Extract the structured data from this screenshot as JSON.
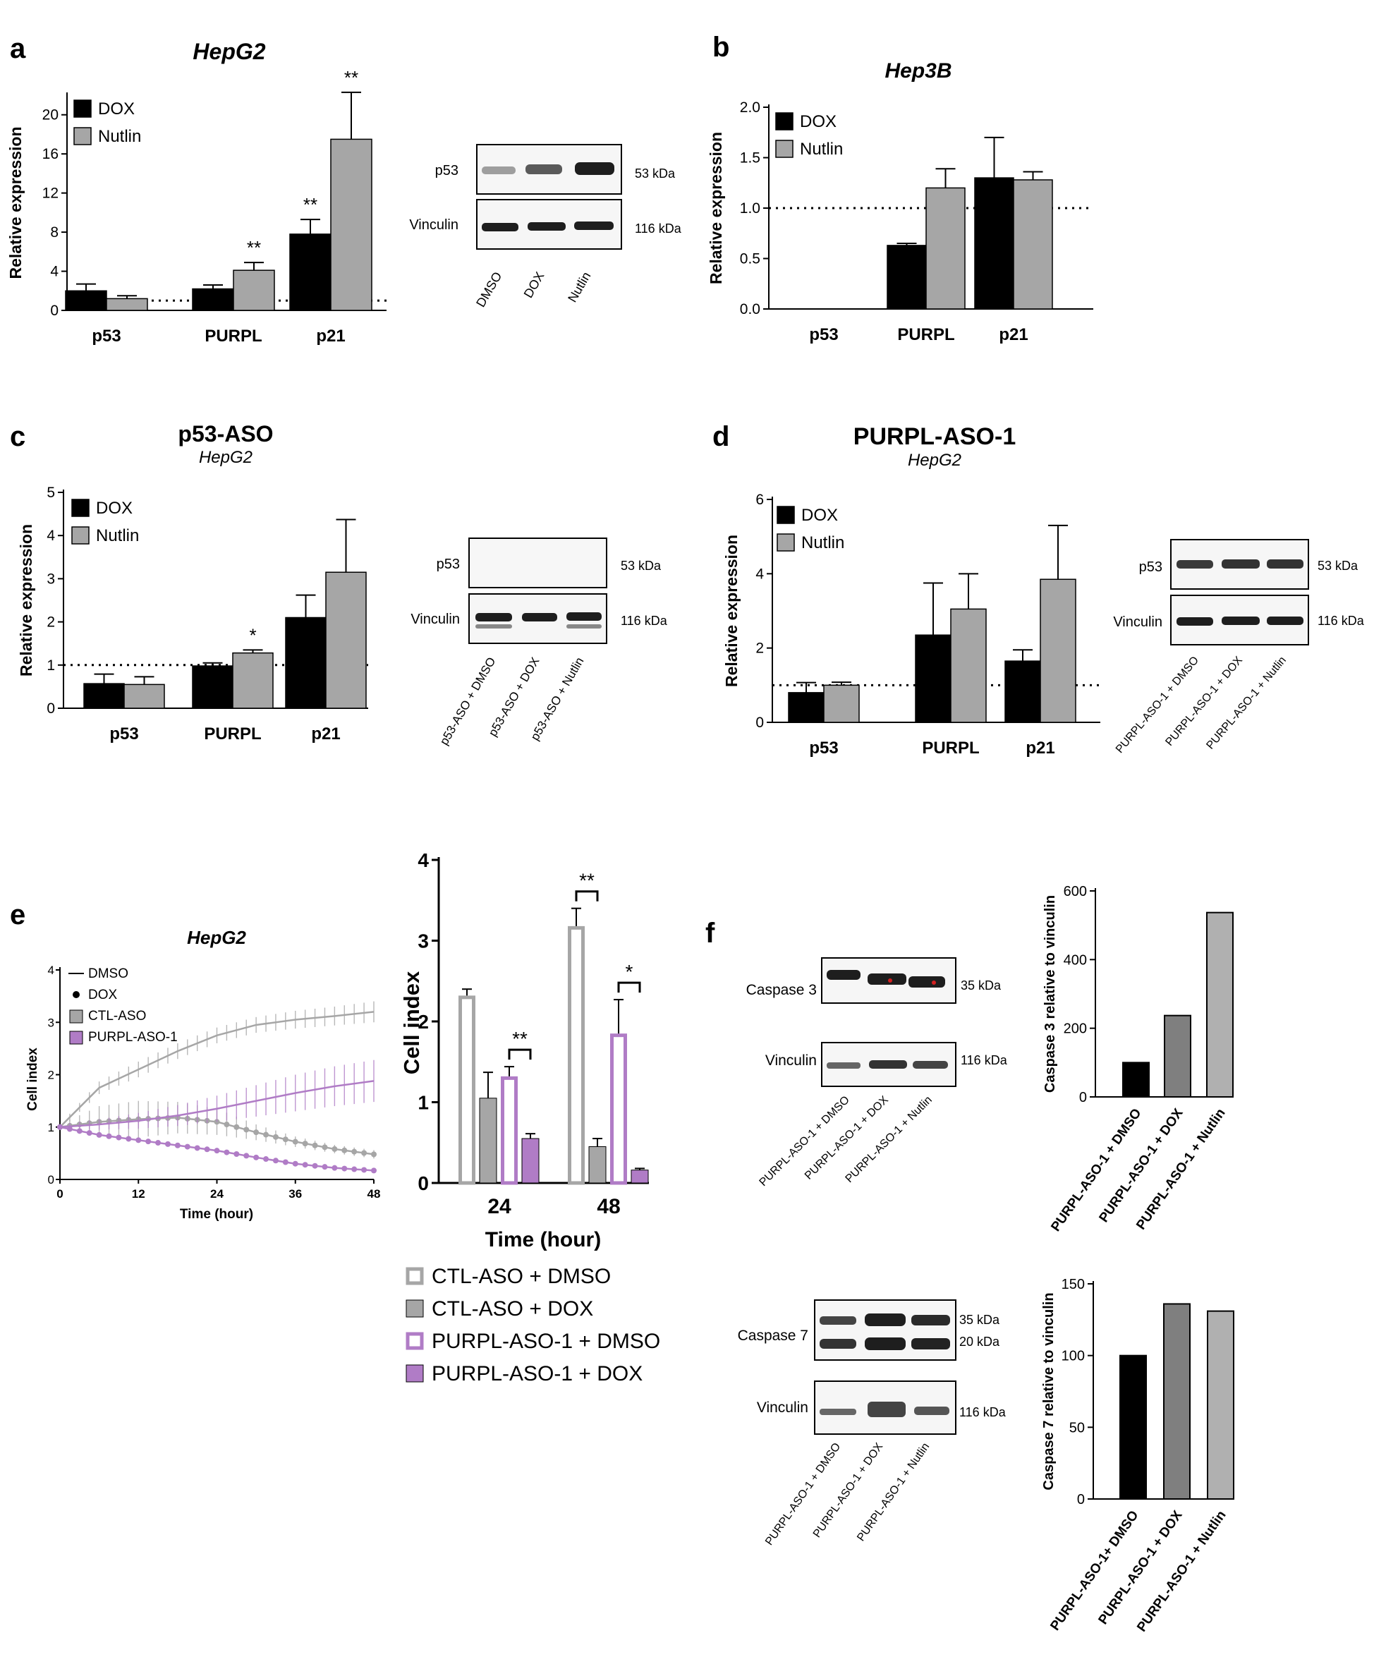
{
  "colors": {
    "black": "#000000",
    "gray": "#a6a6a6",
    "dark_gray": "#7f7f7f",
    "light_gray": "#b0b0b0",
    "purple": "#b07cc6",
    "light_purple": "#c49ad4",
    "blot_band": "#1e1e1e",
    "caspase_mark": "#d32020"
  },
  "chart_data": [
    {
      "panel": "a",
      "type": "bar",
      "title": "HepG2",
      "subtitle": "",
      "ylabel": "Relative expression",
      "ylim": [
        0,
        22
      ],
      "yticks": [
        0,
        4,
        8,
        12,
        16,
        20
      ],
      "reference_line": 1,
      "categories": [
        "p53",
        "PURPL",
        "p21"
      ],
      "series": [
        {
          "name": "DOX",
          "color": "#000000",
          "values": [
            2.0,
            2.2,
            7.8
          ],
          "errors": [
            0.7,
            0.4,
            1.5
          ],
          "sig": [
            "",
            "",
            "**"
          ]
        },
        {
          "name": "Nutlin",
          "color": "#a6a6a6",
          "values": [
            1.2,
            4.1,
            17.5
          ],
          "errors": [
            0.3,
            0.8,
            4.8
          ],
          "sig": [
            "",
            "**",
            "**"
          ]
        }
      ]
    },
    {
      "panel": "b",
      "type": "bar",
      "title": "Hep3B",
      "subtitle": "",
      "ylabel": "Relative expression",
      "ylim": [
        0,
        2.0
      ],
      "yticks": [
        0.0,
        0.5,
        1.0,
        1.5,
        2.0
      ],
      "decimals": 1,
      "reference_line": 1.0,
      "categories": [
        "p53",
        "PURPL",
        "p21"
      ],
      "series": [
        {
          "name": "DOX",
          "color": "#000000",
          "values": [
            0,
            0.63,
            1.3
          ],
          "errors": [
            0,
            0.02,
            0.4
          ],
          "sig": [
            "",
            "",
            ""
          ]
        },
        {
          "name": "Nutlin",
          "color": "#a6a6a6",
          "values": [
            0,
            1.2,
            1.28
          ],
          "errors": [
            0,
            0.19,
            0.08
          ],
          "sig": [
            "",
            "",
            ""
          ]
        }
      ]
    },
    {
      "panel": "c",
      "type": "bar",
      "title": "p53-ASO",
      "subtitle": "HepG2",
      "ylabel": "Relative expression",
      "ylim": [
        0,
        5
      ],
      "yticks": [
        0,
        1,
        2,
        3,
        4,
        5
      ],
      "reference_line": 1,
      "categories": [
        "p53",
        "PURPL",
        "p21"
      ],
      "series": [
        {
          "name": "DOX",
          "color": "#000000",
          "values": [
            0.57,
            0.98,
            2.1
          ],
          "errors": [
            0.22,
            0.07,
            0.52
          ],
          "sig": [
            "",
            "",
            ""
          ]
        },
        {
          "name": "Nutlin",
          "color": "#a6a6a6",
          "values": [
            0.55,
            1.28,
            3.15
          ],
          "errors": [
            0.18,
            0.07,
            1.22
          ],
          "sig": [
            "",
            "*",
            ""
          ]
        }
      ]
    },
    {
      "panel": "d",
      "type": "bar",
      "title": "PURPL-ASO-1",
      "subtitle": "HepG2",
      "ylabel": "Relative expression",
      "ylim": [
        0,
        6
      ],
      "yticks": [
        0,
        2,
        4,
        6
      ],
      "reference_line": 1,
      "categories": [
        "p53",
        "PURPL",
        "p21"
      ],
      "series": [
        {
          "name": "DOX",
          "color": "#000000",
          "values": [
            0.8,
            2.35,
            1.65
          ],
          "errors": [
            0.27,
            1.4,
            0.3
          ],
          "sig": [
            "",
            "",
            ""
          ]
        },
        {
          "name": "Nutlin",
          "color": "#a6a6a6",
          "values": [
            1.0,
            3.05,
            3.85
          ],
          "errors": [
            0.08,
            0.95,
            1.45
          ],
          "sig": [
            "",
            "",
            ""
          ]
        }
      ]
    },
    {
      "panel": "e-line",
      "type": "line",
      "title": "HepG2",
      "xlabel": "Time (hour)",
      "ylabel": "Cell index",
      "xlim": [
        0,
        48
      ],
      "ylim": [
        0,
        4
      ],
      "xticks": [
        0,
        12,
        24,
        36,
        48
      ],
      "yticks": [
        0,
        1,
        2,
        3,
        4
      ],
      "legend": [
        "DMSO",
        "DOX",
        "CTL-ASO",
        "PURPL-ASO-1"
      ],
      "series": [
        {
          "name": "CTL-ASO + DMSO",
          "color": "#a6a6a6",
          "x": [
            0,
            6,
            12,
            18,
            24,
            30,
            36,
            42,
            48
          ],
          "y": [
            1.0,
            1.75,
            2.1,
            2.45,
            2.75,
            2.95,
            3.05,
            3.12,
            3.2
          ],
          "err": [
            0.05,
            0.12,
            0.15,
            0.15,
            0.15,
            0.15,
            0.17,
            0.18,
            0.2
          ]
        },
        {
          "name": "CTL-ASO + DOX",
          "color": "#a6a6a6",
          "x": [
            0,
            6,
            12,
            18,
            24,
            30,
            36,
            42,
            48
          ],
          "y": [
            1.0,
            1.1,
            1.15,
            1.18,
            1.1,
            0.9,
            0.72,
            0.58,
            0.48
          ],
          "err": [
            0.05,
            0.3,
            0.35,
            0.3,
            0.25,
            0.15,
            0.1,
            0.08,
            0.08
          ]
        },
        {
          "name": "PURPL-ASO-1 + DMSO",
          "color": "#b07cc6",
          "x": [
            0,
            6,
            12,
            18,
            24,
            30,
            36,
            42,
            48
          ],
          "y": [
            1.0,
            1.05,
            1.12,
            1.22,
            1.35,
            1.5,
            1.65,
            1.78,
            1.88
          ],
          "err": [
            0.05,
            0.1,
            0.15,
            0.2,
            0.25,
            0.3,
            0.35,
            0.38,
            0.4
          ]
        },
        {
          "name": "PURPL-ASO-1 + DOX",
          "color": "#b07cc6",
          "x": [
            0,
            6,
            12,
            18,
            24,
            30,
            36,
            42,
            48
          ],
          "y": [
            1.0,
            0.85,
            0.75,
            0.65,
            0.55,
            0.42,
            0.3,
            0.22,
            0.17
          ],
          "err": [
            0.02,
            0.02,
            0.02,
            0.02,
            0.02,
            0.02,
            0.02,
            0.02,
            0.02
          ]
        }
      ]
    },
    {
      "panel": "e-bar",
      "type": "bar",
      "xlabel": "Time (hour)",
      "ylabel": "Cell index",
      "ylim": [
        0,
        4
      ],
      "yticks": [
        0,
        1,
        2,
        3,
        4
      ],
      "categories": [
        "24",
        "48"
      ],
      "series": [
        {
          "name": "CTL-ASO + DMSO",
          "color": "#a6a6a6",
          "hollow": true,
          "values": [
            2.32,
            3.18
          ],
          "errors": [
            0.08,
            0.22
          ]
        },
        {
          "name": "CTL-ASO + DOX",
          "color": "#a6a6a6",
          "hollow": false,
          "values": [
            1.05,
            0.45
          ],
          "errors": [
            0.32,
            0.1
          ]
        },
        {
          "name": "PURPL-ASO-1 + DMSO",
          "color": "#b07cc6",
          "hollow": true,
          "values": [
            1.32,
            1.85
          ],
          "errors": [
            0.12,
            0.42
          ]
        },
        {
          "name": "PURPL-ASO-1 + DOX",
          "color": "#b07cc6",
          "hollow": false,
          "values": [
            0.55,
            0.16
          ],
          "errors": [
            0.06,
            0.02
          ]
        }
      ],
      "significance": [
        {
          "time": "24",
          "label": "**",
          "from": 2,
          "to": 3
        },
        {
          "time": "48",
          "label": "**",
          "from": 0,
          "to": 1
        },
        {
          "time": "48",
          "label": "*",
          "from": 2,
          "to": 3
        }
      ]
    },
    {
      "panel": "f-top",
      "type": "bar",
      "ylabel": "Caspase 3 relative to vinculin",
      "ylim": [
        0,
        600
      ],
      "yticks": [
        0,
        200,
        400,
        600
      ],
      "categories": [
        "PURPL-ASO-1 + DMSO",
        "PURPL-ASO-1 + DOX",
        "PURPL-ASO-1 + Nutlin"
      ],
      "values": [
        100,
        237,
        537
      ],
      "colors": [
        "#000000",
        "#7f7f7f",
        "#b0b0b0"
      ]
    },
    {
      "panel": "f-bottom",
      "type": "bar",
      "ylabel": "Caspase 7 relative to vinculin",
      "ylim": [
        0,
        150
      ],
      "yticks": [
        0,
        50,
        100,
        150
      ],
      "categories": [
        "PURPL-ASO-1+ DMSO",
        "PURPL-ASO-1 + DOX",
        "PURPL-ASO-1 + Nutlin"
      ],
      "values": [
        100,
        136,
        131
      ],
      "colors": [
        "#000000",
        "#7f7f7f",
        "#b0b0b0"
      ]
    }
  ],
  "labels": {
    "panel_a": "a",
    "panel_b": "b",
    "panel_c": "c",
    "panel_d": "d",
    "panel_e": "e",
    "panel_f": "f",
    "p53": "p53",
    "vinculin": "Vinculin",
    "caspase3": "Caspase 3",
    "caspase7": "Caspase 7",
    "kda53": "53 kDa",
    "kda116": "116 kDa",
    "kda35": "35 kDa",
    "kda20": "20 kDa",
    "lane_dmso": "DMSO",
    "lane_dox": "DOX",
    "lane_nutlin": "Nutlin",
    "lane_p53aso_dmso": "p53-ASO + DMSO",
    "lane_p53aso_dox": "p53-ASO + DOX",
    "lane_p53aso_nutlin": "p53-ASO + Nutlin",
    "lane_purpl_dmso": "PURPL-ASO-1 + DMSO",
    "lane_purpl_dox": "PURPL-ASO-1 + DOX",
    "lane_purpl_nutlin": "PURPL-ASO-1 + Nutlin"
  }
}
